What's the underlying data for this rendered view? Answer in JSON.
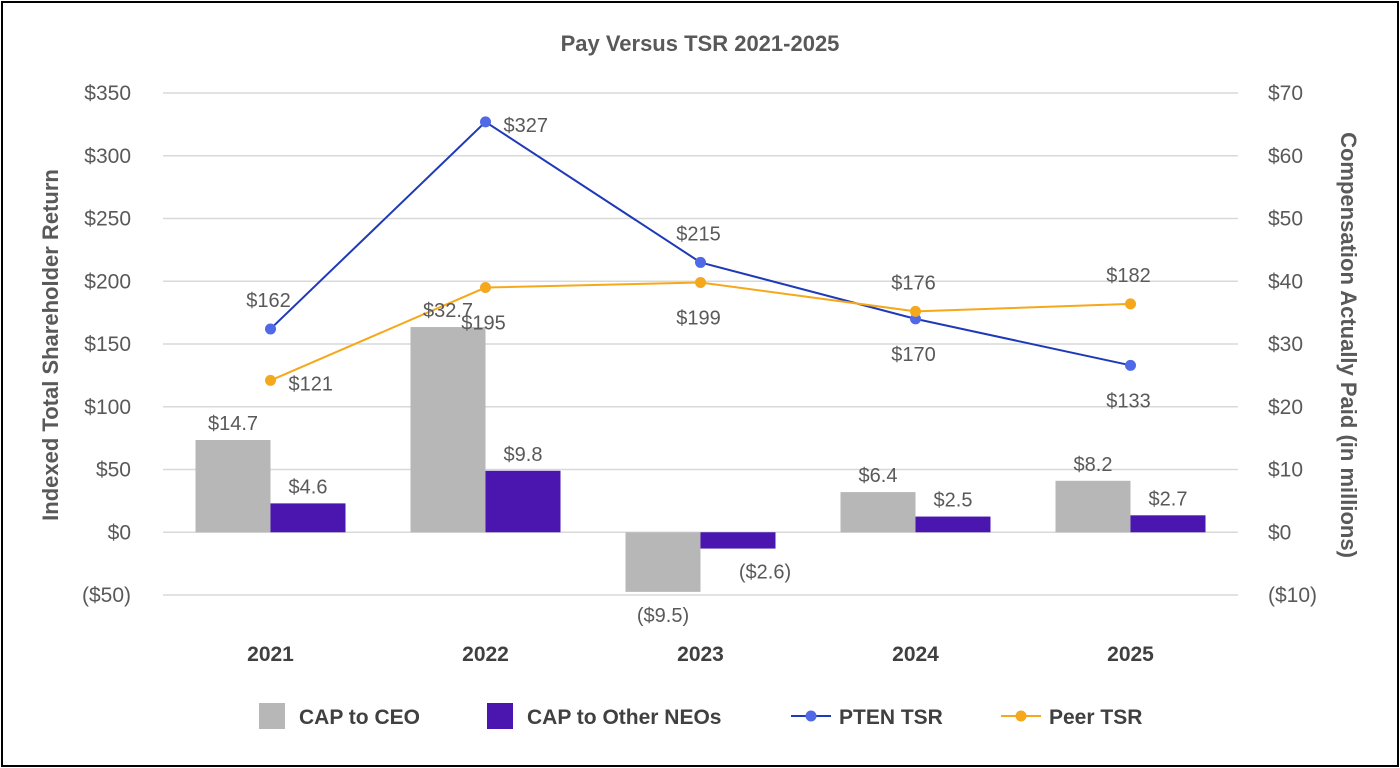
{
  "chart_data": {
    "type": "bar",
    "title": "Pay Versus TSR 2021-2025",
    "categories": [
      "2021",
      "2022",
      "2023",
      "2024",
      "2025"
    ],
    "left_axis": {
      "label": "Indexed Total Shareholder Return",
      "range": [
        -50,
        350
      ],
      "ticks": [
        "($50)",
        "$0",
        "$50",
        "$100",
        "$150",
        "$200",
        "$250",
        "$300",
        "$350"
      ]
    },
    "right_axis": {
      "label": "Compensation Actually Paid (in millions)",
      "range": [
        -10,
        70
      ],
      "ticks": [
        "($10)",
        "$0",
        "$10",
        "$20",
        "$30",
        "$40",
        "$50",
        "$60",
        "$70"
      ]
    },
    "grid": true,
    "legend_position": "bottom",
    "bar_series": [
      {
        "name": "CAP to CEO",
        "axis": "right",
        "color": "#b7b7b7",
        "values": [
          14.7,
          32.7,
          -9.5,
          6.4,
          8.2
        ],
        "labels": [
          "$14.7",
          "$32.7",
          "($9.5)",
          "$6.4",
          "$8.2"
        ]
      },
      {
        "name": "CAP to Other NEOs",
        "axis": "right",
        "color": "#4b16b0",
        "values": [
          4.6,
          9.8,
          -2.6,
          2.5,
          2.7
        ],
        "labels": [
          "$4.6",
          "$9.8",
          "($2.6)",
          "$2.5",
          "$2.7"
        ]
      }
    ],
    "line_series": [
      {
        "name": "PTEN TSR",
        "axis": "left",
        "color": "#5069e6",
        "line_color": "#1f3ab8",
        "values": [
          162,
          327,
          215,
          170,
          133
        ],
        "labels": [
          "$162",
          "$327",
          "$215",
          "$170",
          "$133"
        ]
      },
      {
        "name": "Peer TSR",
        "axis": "left",
        "color": "#f5a81c",
        "line_color": "#f5a81c",
        "values": [
          121,
          195,
          199,
          176,
          182
        ],
        "labels": [
          "$121",
          "$195",
          "$199",
          "$176",
          "$182"
        ]
      }
    ],
    "negative_label_color": "#c0282d"
  }
}
